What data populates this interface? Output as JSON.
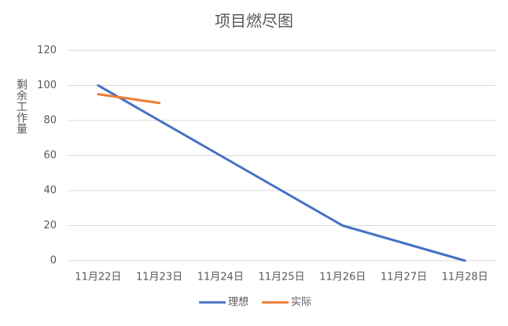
{
  "chart_data": {
    "type": "line",
    "title": "项目燃尽图",
    "y_label": "剩余工作量",
    "categories": [
      "11月22日",
      "11月23日",
      "11月24日",
      "11月25日",
      "11月26日",
      "11月27日",
      "11月28日"
    ],
    "series": [
      {
        "name": "理想",
        "color": "#4472c4",
        "values": [
          100,
          80,
          60,
          40,
          20,
          10,
          0
        ]
      },
      {
        "name": "实际",
        "color": "#ed7d31",
        "values": [
          95,
          90,
          null,
          null,
          null,
          null,
          null
        ]
      }
    ],
    "ylim": [
      0,
      120
    ],
    "yticks": [
      0,
      20,
      40,
      60,
      80,
      100,
      120
    ],
    "grid": true,
    "legend": "bottom"
  }
}
